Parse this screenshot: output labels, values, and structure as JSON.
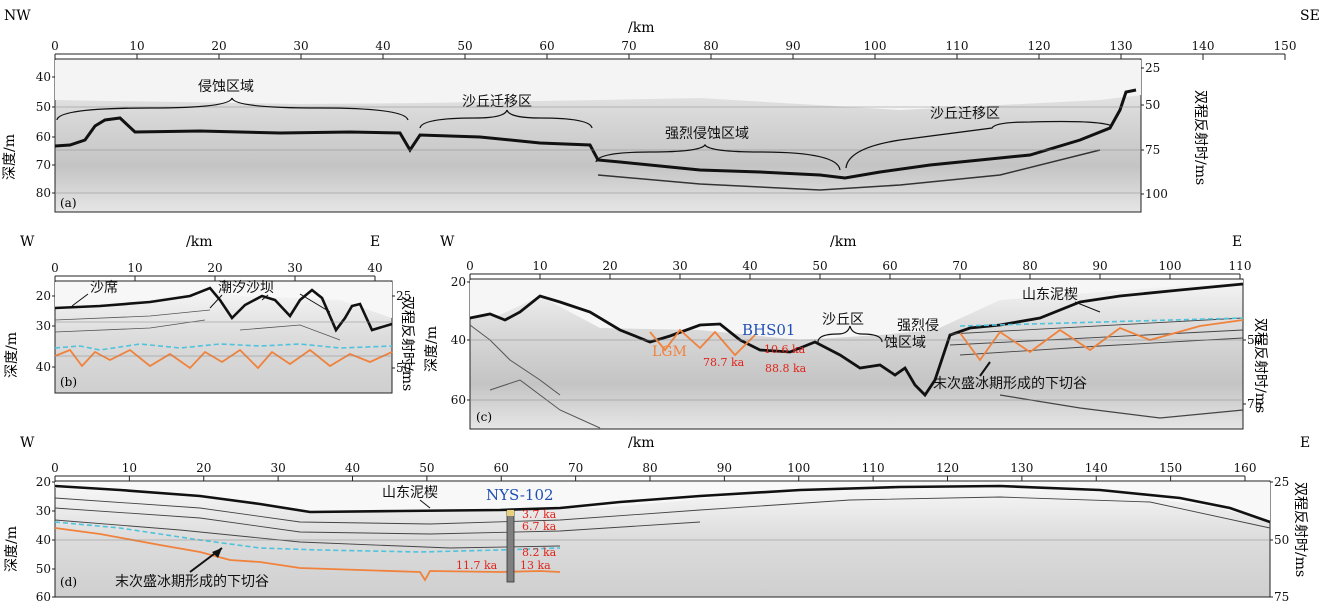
{
  "panel_a": {
    "tag": "(a)",
    "left_dir": "NW",
    "right_dir": "SE",
    "km_label": "/km",
    "x_ticks": [
      "0",
      "10",
      "20",
      "30",
      "40",
      "50",
      "60",
      "70",
      "80",
      "90",
      "100",
      "110",
      "120",
      "130",
      "140",
      "150"
    ],
    "depth_label": "深度/m",
    "depth_ticks": [
      "40",
      "50",
      "60",
      "70",
      "80"
    ],
    "twt_label": "双程反射时/ms",
    "twt_ticks": [
      "25",
      "50",
      "75",
      "100"
    ],
    "zones": [
      "侵蚀区域",
      "沙丘迁移区",
      "强烈侵蚀区域",
      "沙丘迁移区"
    ]
  },
  "panel_b": {
    "tag": "(b)",
    "left_dir": "W",
    "right_dir": "E",
    "km_label": "/km",
    "x_ticks": [
      "0",
      "10",
      "20",
      "30",
      "40"
    ],
    "depth_label": "深度/m",
    "depth_ticks": [
      "20",
      "30",
      "40"
    ],
    "twt_label": "双程反射时/ms",
    "twt_ticks": [
      "25",
      "50"
    ],
    "sand_sheet": "沙席",
    "tidal_ridge": "潮汐沙坝"
  },
  "panel_c": {
    "tag": "(c)",
    "left_dir": "W",
    "right_dir": "E",
    "km_label": "/km",
    "x_ticks": [
      "0",
      "10",
      "20",
      "30",
      "40",
      "50",
      "60",
      "70",
      "80",
      "90",
      "100",
      "110"
    ],
    "depth_label": "深度/m",
    "depth_ticks": [
      "20",
      "40",
      "60"
    ],
    "twt_label": "双程反射时/ms",
    "twt_ticks": [
      "50",
      "75"
    ],
    "core": "BHS01",
    "lgm": "LGM",
    "age_1": "10.6 ka",
    "age_2": "78.7 ka",
    "age_3": "88.8 ka",
    "dune_zone": "沙丘区",
    "erosion_1": "强烈侵",
    "erosion_2": "蚀区域",
    "wedge": "山东泥楔",
    "valley": "末次盛冰期形成的下切谷"
  },
  "panel_d": {
    "tag": "(d)",
    "left_dir": "W",
    "right_dir": "E",
    "km_label": "/km",
    "x_ticks": [
      "0",
      "10",
      "20",
      "30",
      "40",
      "50",
      "60",
      "70",
      "80",
      "90",
      "100",
      "110",
      "120",
      "130",
      "140",
      "150",
      "160"
    ],
    "depth_label": "深度/m",
    "depth_ticks": [
      "20",
      "30",
      "40",
      "50",
      "60"
    ],
    "twt_label": "双程反射时/ms",
    "twt_ticks": [
      "25",
      "50",
      "75"
    ],
    "core": "NYS-102",
    "wedge": "山东泥楔",
    "valley": "末次盛冰期形成的下切谷",
    "ages": [
      "3.7 ka",
      "6.7 ka",
      "8.2 ka",
      "11.7 ka",
      "13 ka"
    ]
  },
  "colors": {
    "lgm_orange": "#f0823c",
    "dashed_cyan": "#4fc3dc",
    "age_red": "#e0241b",
    "core_blue": "#1f4fb4"
  }
}
